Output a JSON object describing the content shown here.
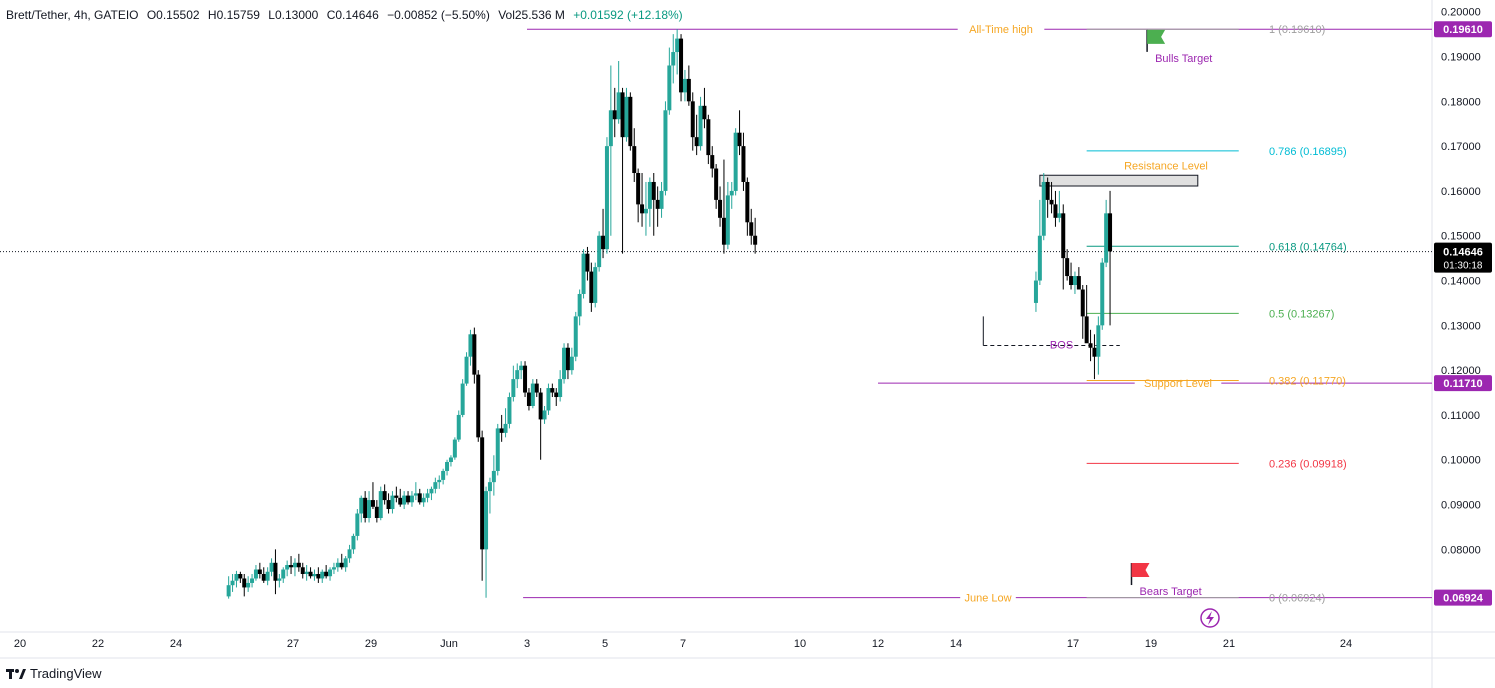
{
  "header": {
    "symbol": "Brett/Tether, 4h, GATEIO",
    "open": "O0.15502",
    "high": "H0.15759",
    "low": "L0.13000",
    "close": "C0.14646",
    "change": "−0.00852 (−5.50%)",
    "volume": "Vol25.536 M",
    "indicator": "+0.01592 (+12.18%)"
  },
  "footer": {
    "brand": "TradingView",
    "logo_icon": "tradingview-logo-icon"
  },
  "colors": {
    "up": "#26a69a",
    "down": "#000000",
    "purple": "#9c27b0",
    "orange": "#f5a623",
    "teal": "#00bcd4",
    "red": "#f23645",
    "green": "#4caf50",
    "fib_618": "#089981",
    "fib_05": "#4caf50"
  },
  "chart_data": {
    "type": "candlestick",
    "title": "",
    "ylim": [
      0.062,
      0.2015
    ],
    "y_ticks": [
      "0.20000",
      "0.19000",
      "0.18000",
      "0.17000",
      "0.16000",
      "0.15000",
      "0.14000",
      "0.13000",
      "0.12000",
      "0.11000",
      "0.10000",
      "0.09000",
      "0.08000",
      "0.07000"
    ],
    "x_ticks": [
      {
        "label": "20",
        "x": 0.0
      },
      {
        "label": "22",
        "x": 2.0
      },
      {
        "label": "24",
        "x": 4.0
      },
      {
        "label": "27",
        "x": 7.0
      },
      {
        "label": "29",
        "x": 9.0
      },
      {
        "label": "Jun",
        "x": 11.0
      },
      {
        "label": "3",
        "x": 13.0
      },
      {
        "label": "5",
        "x": 15.0
      },
      {
        "label": "7",
        "x": 17.0
      },
      {
        "label": "10",
        "x": 20.0
      },
      {
        "label": "12",
        "x": 22.0
      },
      {
        "label": "14",
        "x": 24.0
      },
      {
        "label": "17",
        "x": 27.0
      },
      {
        "label": "19",
        "x": 29.0
      },
      {
        "label": "21",
        "x": 31.0
      },
      {
        "label": "24",
        "x": 34.0
      }
    ],
    "current_price": {
      "label": "0.14646",
      "countdown": "01:30:18",
      "value": 0.14646
    },
    "price_labels": [
      {
        "label": "0.19610",
        "value": 0.1961
      },
      {
        "label": "0.11710",
        "value": 0.1171
      },
      {
        "label": "0.06924",
        "value": 0.06924
      }
    ],
    "horizontal_lines": [
      {
        "name": "All-Time high",
        "value": 0.1961,
        "x_start": 13.0,
        "x_end": 34.1
      },
      {
        "name": "June Low",
        "value": 0.06924,
        "x_start": 12.9,
        "x_end": 34.1
      },
      {
        "name": "Support Level",
        "value": 0.1171,
        "x_start": 22.0,
        "x_end": 34.1
      }
    ],
    "fibonacci": [
      {
        "label": "1 (0.19610)",
        "value": 0.1961,
        "color": "#9e9e9e"
      },
      {
        "label": "0.786 (0.16895)",
        "value": 0.16895,
        "color": "#00bcd4"
      },
      {
        "label": "0.618 (0.14764)",
        "value": 0.14764,
        "color": "#089981"
      },
      {
        "label": "0.5 (0.13267)",
        "value": 0.13267,
        "color": "#4caf50"
      },
      {
        "label": "0.382 (0.11770)",
        "value": 0.1177,
        "color": "#f5a623"
      },
      {
        "label": "0.236 (0.09918)",
        "value": 0.09918,
        "color": "#f23645"
      },
      {
        "label": "0 (0.06924)",
        "value": 0.06924,
        "color": "#9e9e9e"
      }
    ],
    "fib_x_start": 27.35,
    "fib_x_end": 31.25,
    "resistance_zone": {
      "label": "Resistance Level",
      "x_start": 26.15,
      "x_end": 30.2,
      "y_low": 0.1611,
      "y_high": 0.1635
    },
    "bos": {
      "label": "BOS",
      "y": 0.1255,
      "x_start": 24.7,
      "x_end": 28.2
    },
    "annotations": [
      {
        "name": "Bulls Target",
        "flag": "green",
        "x": 28.9,
        "y": 0.1955
      },
      {
        "name": "Bears Target",
        "flag": "red",
        "x": 28.5,
        "y": 0.0765
      }
    ],
    "candles": [
      [
        5.35,
        0.0695,
        0.074,
        0.069,
        0.072
      ],
      [
        5.45,
        0.072,
        0.0745,
        0.0705,
        0.073
      ],
      [
        5.55,
        0.073,
        0.0752,
        0.0715,
        0.0745
      ],
      [
        5.65,
        0.0745,
        0.075,
        0.0725,
        0.0735
      ],
      [
        5.75,
        0.0735,
        0.0745,
        0.0695,
        0.0715
      ],
      [
        5.85,
        0.0715,
        0.074,
        0.0705,
        0.0725
      ],
      [
        5.95,
        0.0725,
        0.0745,
        0.0715,
        0.0735
      ],
      [
        6.05,
        0.0735,
        0.0765,
        0.073,
        0.0755
      ],
      [
        6.15,
        0.0755,
        0.077,
        0.0735,
        0.0745
      ],
      [
        6.25,
        0.0745,
        0.076,
        0.0725,
        0.073
      ],
      [
        6.35,
        0.073,
        0.076,
        0.072,
        0.075
      ],
      [
        6.45,
        0.075,
        0.078,
        0.074,
        0.077
      ],
      [
        6.55,
        0.077,
        0.08,
        0.07,
        0.073
      ],
      [
        6.65,
        0.073,
        0.0745,
        0.0715,
        0.0735
      ],
      [
        6.75,
        0.0735,
        0.076,
        0.0725,
        0.0755
      ],
      [
        6.85,
        0.0755,
        0.0775,
        0.074,
        0.0765
      ],
      [
        6.95,
        0.0765,
        0.0785,
        0.0745,
        0.076
      ],
      [
        7.05,
        0.076,
        0.078,
        0.074,
        0.077
      ],
      [
        7.15,
        0.077,
        0.079,
        0.075,
        0.076
      ],
      [
        7.25,
        0.076,
        0.077,
        0.0735,
        0.0745
      ],
      [
        7.35,
        0.0745,
        0.0765,
        0.073,
        0.075
      ],
      [
        7.45,
        0.075,
        0.076,
        0.0735,
        0.074
      ],
      [
        7.55,
        0.074,
        0.0755,
        0.073,
        0.0745
      ],
      [
        7.65,
        0.0745,
        0.076,
        0.0725,
        0.0735
      ],
      [
        7.75,
        0.0735,
        0.0755,
        0.0725,
        0.075
      ],
      [
        7.85,
        0.075,
        0.0765,
        0.0735,
        0.074
      ],
      [
        7.95,
        0.074,
        0.076,
        0.073,
        0.0755
      ],
      [
        8.05,
        0.0755,
        0.077,
        0.0745,
        0.076
      ],
      [
        8.15,
        0.076,
        0.078,
        0.075,
        0.077
      ],
      [
        8.25,
        0.077,
        0.079,
        0.0755,
        0.076
      ],
      [
        8.35,
        0.076,
        0.0785,
        0.075,
        0.078
      ],
      [
        8.45,
        0.078,
        0.081,
        0.077,
        0.08
      ],
      [
        8.55,
        0.08,
        0.0835,
        0.079,
        0.083
      ],
      [
        8.65,
        0.083,
        0.089,
        0.082,
        0.088
      ],
      [
        8.75,
        0.088,
        0.092,
        0.086,
        0.0915
      ],
      [
        8.85,
        0.0915,
        0.093,
        0.086,
        0.087
      ],
      [
        8.95,
        0.087,
        0.093,
        0.086,
        0.091
      ],
      [
        9.05,
        0.091,
        0.095,
        0.089,
        0.0895
      ],
      [
        9.15,
        0.0895,
        0.091,
        0.086,
        0.087
      ],
      [
        9.25,
        0.087,
        0.094,
        0.0865,
        0.093
      ],
      [
        9.35,
        0.093,
        0.0945,
        0.09,
        0.091
      ],
      [
        9.45,
        0.091,
        0.0925,
        0.088,
        0.089
      ],
      [
        9.55,
        0.089,
        0.093,
        0.088,
        0.092
      ],
      [
        9.65,
        0.092,
        0.094,
        0.0905,
        0.0915
      ],
      [
        9.75,
        0.0915,
        0.0935,
        0.0895,
        0.09
      ],
      [
        9.85,
        0.09,
        0.093,
        0.089,
        0.092
      ],
      [
        9.95,
        0.092,
        0.093,
        0.09,
        0.0905
      ],
      [
        10.05,
        0.0905,
        0.093,
        0.0895,
        0.092
      ],
      [
        10.15,
        0.092,
        0.095,
        0.091,
        0.0925
      ],
      [
        10.25,
        0.0925,
        0.0935,
        0.09,
        0.0905
      ],
      [
        10.35,
        0.0905,
        0.0925,
        0.0895,
        0.0915
      ],
      [
        10.45,
        0.0915,
        0.0935,
        0.0905,
        0.0925
      ],
      [
        10.55,
        0.0925,
        0.094,
        0.091,
        0.0935
      ],
      [
        10.65,
        0.0935,
        0.096,
        0.0925,
        0.095
      ],
      [
        10.75,
        0.095,
        0.0965,
        0.0935,
        0.0955
      ],
      [
        10.85,
        0.0955,
        0.098,
        0.0945,
        0.0975
      ],
      [
        10.95,
        0.0975,
        0.1,
        0.0965,
        0.0995
      ],
      [
        11.05,
        0.0995,
        0.101,
        0.0985,
        0.1005
      ],
      [
        11.15,
        0.1005,
        0.105,
        0.1,
        0.1045
      ],
      [
        11.25,
        0.1045,
        0.111,
        0.104,
        0.11
      ],
      [
        11.35,
        0.11,
        0.118,
        0.1095,
        0.117
      ],
      [
        11.45,
        0.117,
        0.124,
        0.1165,
        0.123
      ],
      [
        11.55,
        0.123,
        0.129,
        0.121,
        0.128
      ],
      [
        11.65,
        0.128,
        0.1295,
        0.117,
        0.119
      ],
      [
        11.75,
        0.119,
        0.12,
        0.104,
        0.105
      ],
      [
        11.85,
        0.105,
        0.1065,
        0.073,
        0.08
      ],
      [
        11.95,
        0.08,
        0.094,
        0.0692,
        0.093
      ],
      [
        12.05,
        0.093,
        0.096,
        0.088,
        0.095
      ],
      [
        12.15,
        0.095,
        0.101,
        0.092,
        0.0975
      ],
      [
        12.25,
        0.0975,
        0.108,
        0.0965,
        0.107
      ],
      [
        12.35,
        0.107,
        0.11,
        0.104,
        0.106
      ],
      [
        12.45,
        0.106,
        0.1115,
        0.105,
        0.108
      ],
      [
        12.55,
        0.108,
        0.115,
        0.107,
        0.114
      ],
      [
        12.65,
        0.114,
        0.121,
        0.113,
        0.118
      ],
      [
        12.75,
        0.118,
        0.1215,
        0.116,
        0.12
      ],
      [
        12.85,
        0.12,
        0.122,
        0.118,
        0.121
      ],
      [
        12.95,
        0.121,
        0.122,
        0.114,
        0.115
      ],
      [
        13.05,
        0.115,
        0.116,
        0.111,
        0.112
      ],
      [
        13.15,
        0.112,
        0.118,
        0.1115,
        0.117
      ],
      [
        13.25,
        0.117,
        0.118,
        0.114,
        0.115
      ],
      [
        13.35,
        0.115,
        0.116,
        0.1,
        0.109
      ],
      [
        13.45,
        0.109,
        0.112,
        0.108,
        0.111
      ],
      [
        13.55,
        0.111,
        0.117,
        0.11,
        0.116
      ],
      [
        13.65,
        0.116,
        0.117,
        0.114,
        0.115
      ],
      [
        13.75,
        0.115,
        0.116,
        0.112,
        0.114
      ],
      [
        13.85,
        0.114,
        0.12,
        0.113,
        0.118
      ],
      [
        13.95,
        0.118,
        0.126,
        0.117,
        0.125
      ],
      [
        14.05,
        0.125,
        0.126,
        0.118,
        0.12
      ],
      [
        14.15,
        0.12,
        0.125,
        0.119,
        0.123
      ],
      [
        14.25,
        0.123,
        0.133,
        0.122,
        0.132
      ],
      [
        14.35,
        0.132,
        0.138,
        0.13,
        0.137
      ],
      [
        14.45,
        0.137,
        0.147,
        0.136,
        0.146
      ],
      [
        14.55,
        0.146,
        0.1475,
        0.14,
        0.142
      ],
      [
        14.65,
        0.142,
        0.144,
        0.133,
        0.135
      ],
      [
        14.75,
        0.135,
        0.144,
        0.134,
        0.143
      ],
      [
        14.85,
        0.143,
        0.151,
        0.142,
        0.15
      ],
      [
        14.95,
        0.15,
        0.156,
        0.145,
        0.147
      ],
      [
        15.05,
        0.147,
        0.172,
        0.146,
        0.17
      ],
      [
        15.15,
        0.17,
        0.188,
        0.15,
        0.178
      ],
      [
        15.25,
        0.178,
        0.183,
        0.172,
        0.176
      ],
      [
        15.35,
        0.176,
        0.189,
        0.175,
        0.182
      ],
      [
        15.45,
        0.182,
        0.183,
        0.146,
        0.172
      ],
      [
        15.55,
        0.172,
        0.183,
        0.171,
        0.181
      ],
      [
        15.65,
        0.181,
        0.182,
        0.169,
        0.17
      ],
      [
        15.75,
        0.17,
        0.174,
        0.162,
        0.164
      ],
      [
        15.85,
        0.164,
        0.165,
        0.153,
        0.157
      ],
      [
        15.95,
        0.157,
        0.164,
        0.152,
        0.155
      ],
      [
        16.05,
        0.155,
        0.162,
        0.15,
        0.156
      ],
      [
        16.15,
        0.156,
        0.163,
        0.152,
        0.162
      ],
      [
        16.25,
        0.162,
        0.164,
        0.15,
        0.158
      ],
      [
        16.35,
        0.158,
        0.161,
        0.152,
        0.156
      ],
      [
        16.45,
        0.156,
        0.162,
        0.154,
        0.16
      ],
      [
        16.55,
        0.16,
        0.18,
        0.159,
        0.178
      ],
      [
        16.65,
        0.178,
        0.192,
        0.177,
        0.188
      ],
      [
        16.75,
        0.188,
        0.195,
        0.184,
        0.191
      ],
      [
        16.85,
        0.191,
        0.1961,
        0.186,
        0.194
      ],
      [
        16.95,
        0.194,
        0.195,
        0.18,
        0.182
      ],
      [
        17.05,
        0.182,
        0.187,
        0.18,
        0.185
      ],
      [
        17.15,
        0.185,
        0.188,
        0.179,
        0.18
      ],
      [
        17.25,
        0.18,
        0.182,
        0.169,
        0.172
      ],
      [
        17.35,
        0.172,
        0.177,
        0.168,
        0.17
      ],
      [
        17.45,
        0.17,
        0.181,
        0.169,
        0.179
      ],
      [
        17.55,
        0.179,
        0.183,
        0.174,
        0.176
      ],
      [
        17.65,
        0.176,
        0.177,
        0.166,
        0.168
      ],
      [
        17.75,
        0.168,
        0.17,
        0.163,
        0.165
      ],
      [
        17.85,
        0.165,
        0.166,
        0.156,
        0.158
      ],
      [
        17.95,
        0.158,
        0.161,
        0.152,
        0.154
      ],
      [
        18.05,
        0.154,
        0.167,
        0.146,
        0.148
      ],
      [
        18.15,
        0.148,
        0.162,
        0.147,
        0.159
      ],
      [
        18.25,
        0.159,
        0.162,
        0.156,
        0.16
      ],
      [
        18.35,
        0.16,
        0.174,
        0.159,
        0.173
      ],
      [
        18.45,
        0.173,
        0.178,
        0.168,
        0.17
      ],
      [
        18.55,
        0.17,
        0.173,
        0.16,
        0.162
      ],
      [
        18.65,
        0.162,
        0.163,
        0.15,
        0.153
      ],
      [
        18.75,
        0.153,
        0.156,
        0.148,
        0.15
      ],
      [
        18.85,
        0.15,
        0.154,
        0.146,
        0.148
      ]
    ]
  }
}
